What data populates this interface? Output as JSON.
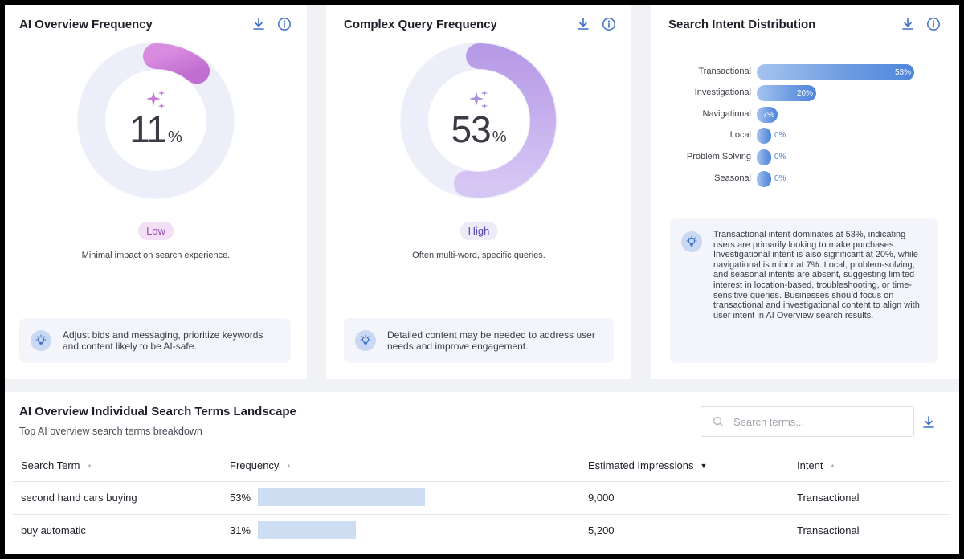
{
  "cards": [
    {
      "title": "AI Overview Frequency",
      "value": "11",
      "unit": "%",
      "fraction": 0.11,
      "level": "Low",
      "description": "Minimal impact on search experience.",
      "tip": "Adjust bids and messaging, prioritize keywords and content likely to be AI-safe."
    },
    {
      "title": "Complex Query Frequency",
      "value": "53",
      "unit": "%",
      "fraction": 0.53,
      "level": "High",
      "description": "Often multi-word, specific queries.",
      "tip": "Detailed content may be needed to address user needs and improve engagement."
    }
  ],
  "intent": {
    "title": "Search Intent Distribution",
    "rows": [
      {
        "label": "Transactional",
        "value": 53,
        "text": "53%"
      },
      {
        "label": "Investigational",
        "value": 20,
        "text": "20%"
      },
      {
        "label": "Navigational",
        "value": 7,
        "text": "7%"
      },
      {
        "label": "Local",
        "value": 0,
        "text": "0%"
      },
      {
        "label": "Problem Solving",
        "value": 0,
        "text": "0%"
      },
      {
        "label": "Seasonal",
        "value": 0,
        "text": "0%"
      }
    ],
    "analysis": "Transactional intent dominates at 53%, indicating users are primarily looking to make purchases. Investigational intent is also significant at 20%, while navigational is minor at 7%. Local, problem-solving, and seasonal intents are absent, suggesting limited interest in location-based, troubleshooting, or time-sensitive queries. Businesses should focus on transactional and investigational content to align with user intent in AI Overview search results."
  },
  "landscape": {
    "title": "AI Overview Individual Search Terms Landscape",
    "subtitle": "Top AI overview search terms breakdown",
    "search_placeholder": "Search terms...",
    "columns": [
      "Search Term",
      "Frequency",
      "Estimated Impressions",
      "Intent"
    ],
    "rows": [
      {
        "term": "second hand cars buying",
        "freq": "53%",
        "freq_value": 53,
        "impressions": "9,000",
        "intent": "Transactional"
      },
      {
        "term": "buy automatic",
        "freq": "31%",
        "freq_value": 31,
        "impressions": "5,200",
        "intent": "Transactional"
      }
    ]
  },
  "colors": {
    "accent_purple": "#c77fd6",
    "accent_blue": "#4f86dc",
    "low_pill": "#f4e0f6",
    "high_pill": "#ecebf8"
  }
}
